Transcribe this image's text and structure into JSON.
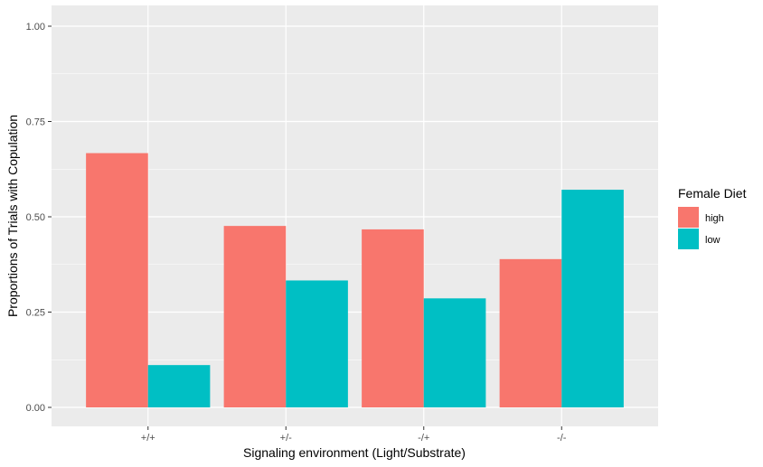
{
  "chart_data": {
    "type": "bar",
    "categories": [
      "+/+",
      "+/-",
      "-/+",
      "-/-"
    ],
    "series": [
      {
        "name": "high",
        "color": "#F8766D",
        "values": [
          0.667,
          0.476,
          0.467,
          0.389
        ]
      },
      {
        "name": "low",
        "color": "#00BFC4",
        "values": [
          0.111,
          0.333,
          0.286,
          0.571
        ]
      }
    ],
    "xlabel": "Signaling environment (Light/Substrate)",
    "ylabel": "Proportions of Trials with Copulation",
    "ylim": [
      0,
      1.05
    ],
    "yticks": [
      0,
      0.25,
      0.5,
      0.75,
      1.0
    ],
    "ytick_labels": [
      "0.00",
      "0.25",
      "0.50",
      "0.75",
      "1.00"
    ],
    "grid": true,
    "panel_background": "#EBEBEB",
    "legend": {
      "title": "Female Diet",
      "placement": "right"
    }
  }
}
